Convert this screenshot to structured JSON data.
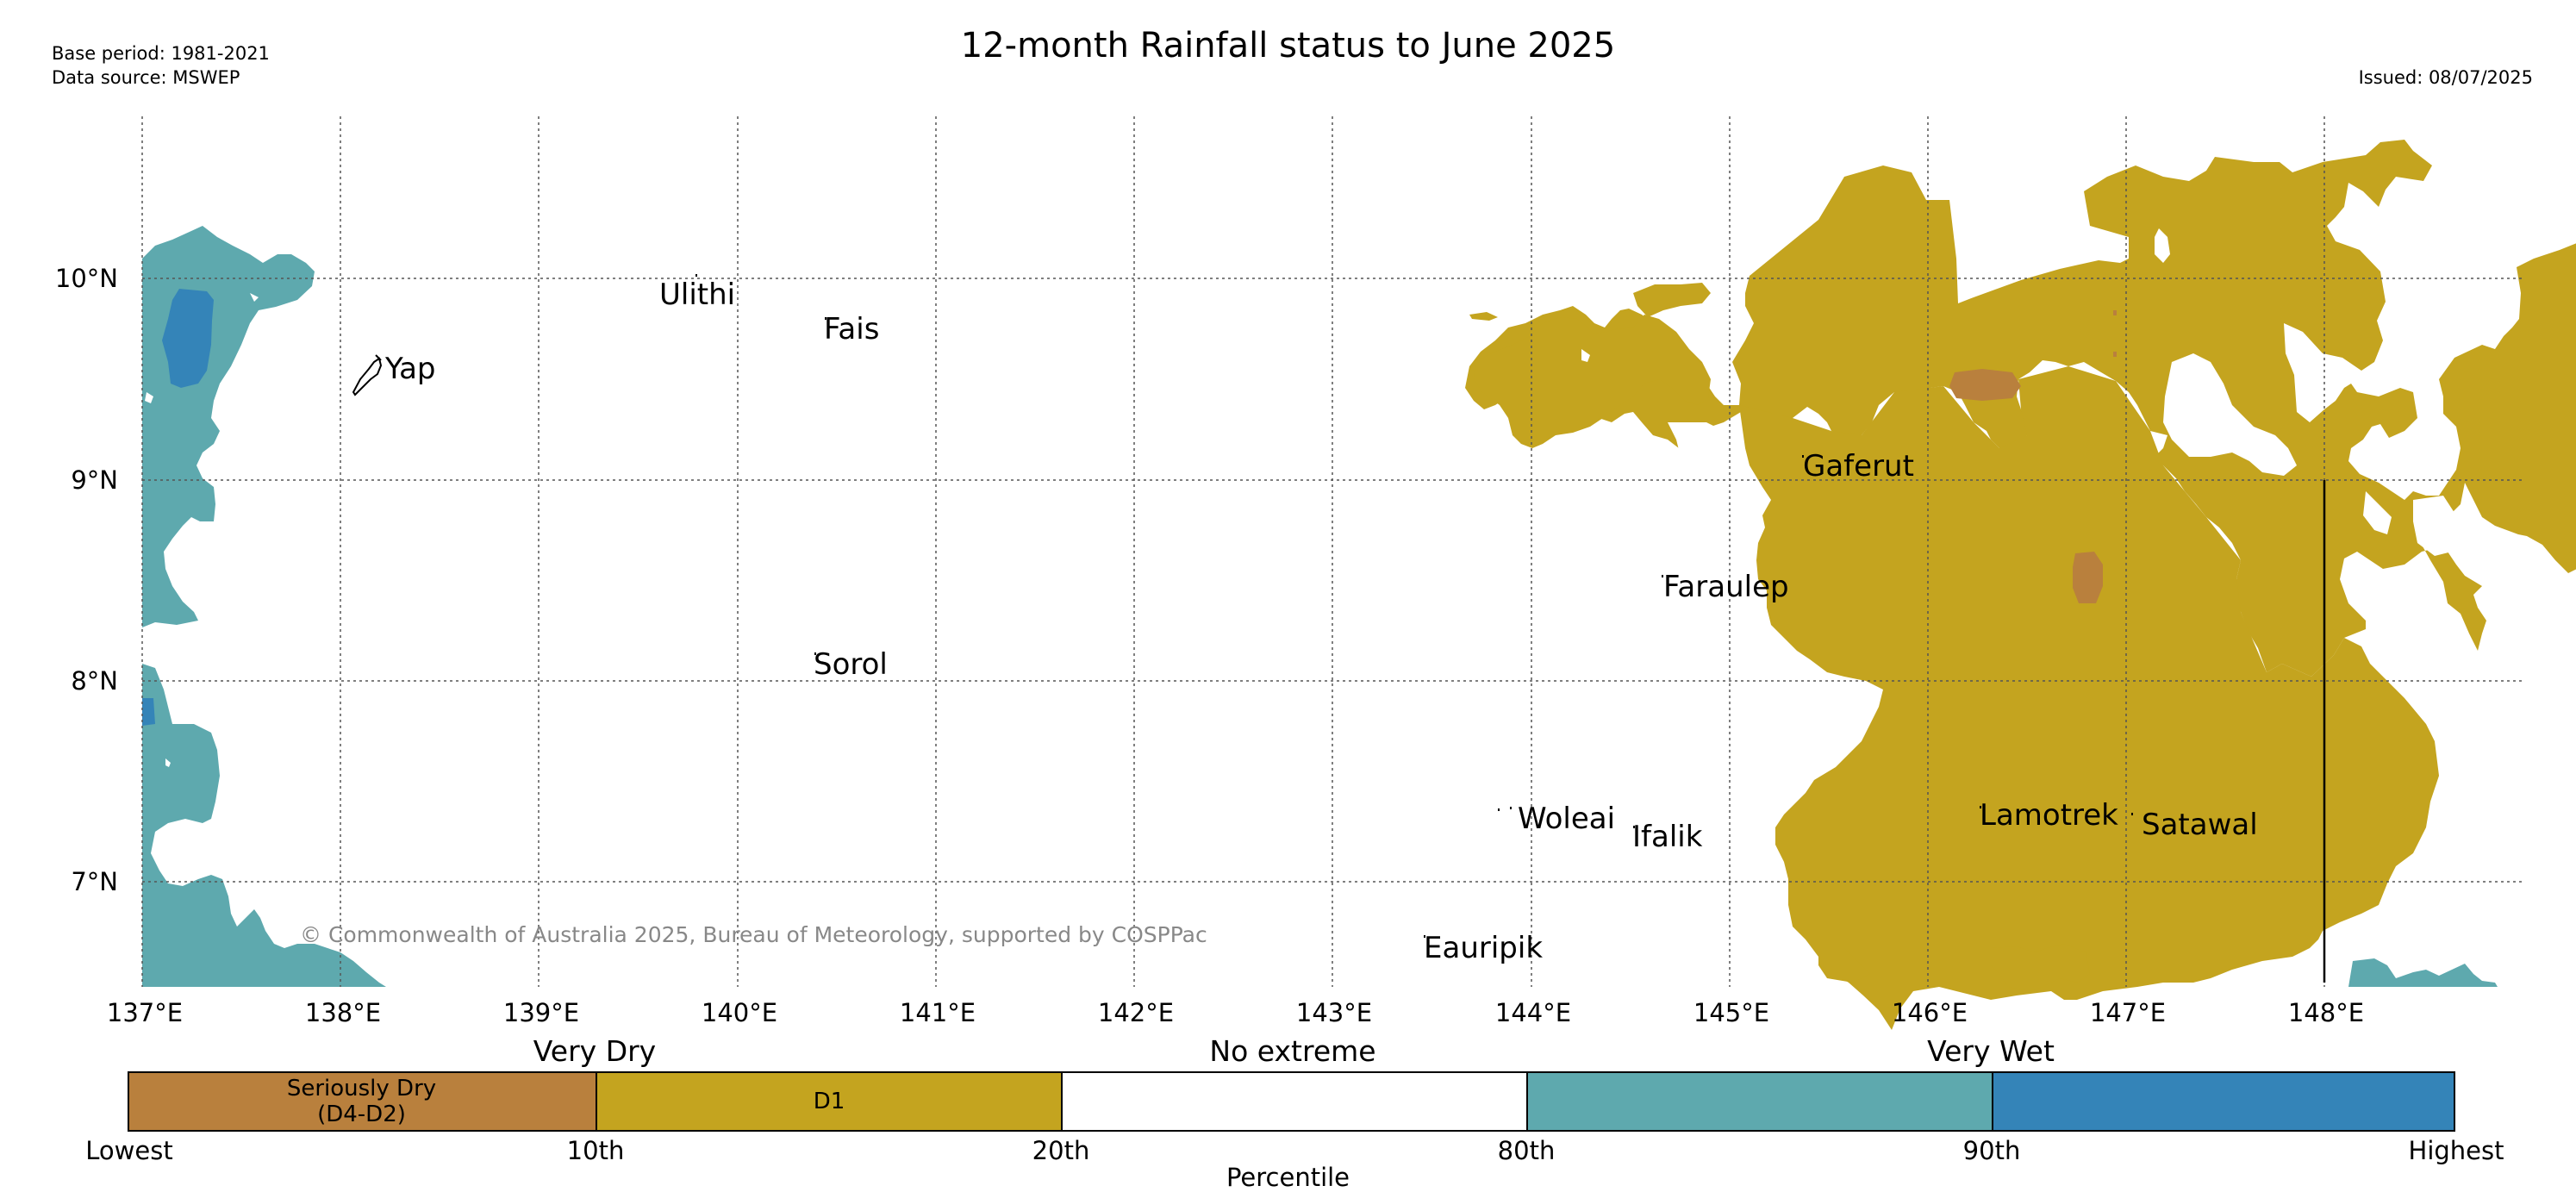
{
  "header": {
    "title": "12-month Rainfall status to June 2025",
    "base_period": "Base period: 1981-2021",
    "data_source": "Data source: MSWEP",
    "issued": "Issued: 08/07/2025"
  },
  "map": {
    "lon_labels": [
      "137°E",
      "138°E",
      "139°E",
      "140°E",
      "141°E",
      "142°E",
      "143°E",
      "144°E",
      "145°E",
      "146°E",
      "147°E",
      "148°E"
    ],
    "lat_labels": [
      "10°N",
      "9°N",
      "8°N",
      "7°N"
    ],
    "places": [
      {
        "name": "Ulithi"
      },
      {
        "name": "Fais"
      },
      {
        "name": "Yap"
      },
      {
        "name": "Gaferut"
      },
      {
        "name": "Faraulep"
      },
      {
        "name": "Sorol"
      },
      {
        "name": "Woleai"
      },
      {
        "name": "Ifalik"
      },
      {
        "name": "Lamotrek"
      },
      {
        "name": "Satawal"
      },
      {
        "name": "Eauripik"
      }
    ],
    "copyright": "© Commonwealth of Australia 2025, Bureau of Meteorology, supported by COSPPac",
    "colors": {
      "seriously_dry": "#b9803d",
      "d1": "#c4a41f",
      "no_extreme": "#ffffff",
      "wet_80_90": "#5ea9ae",
      "wet_90_high": "#3484b8"
    }
  },
  "legend": {
    "category_very_dry": "Very Dry",
    "category_no_extreme": "No extreme",
    "category_very_wet": "Very Wet",
    "segments": [
      {
        "label": "Seriously Dry\n(D4-D2)",
        "color": "#b9803d"
      },
      {
        "label": "D1",
        "color": "#c4a41f"
      },
      {
        "label": "",
        "color": "#ffffff"
      },
      {
        "label": "",
        "color": "#5ea9ae"
      },
      {
        "label": "",
        "color": "#3484b8"
      }
    ],
    "ticks": [
      "Lowest",
      "10th",
      "20th",
      "80th",
      "90th",
      "Highest"
    ],
    "xlabel": "Percentile"
  }
}
